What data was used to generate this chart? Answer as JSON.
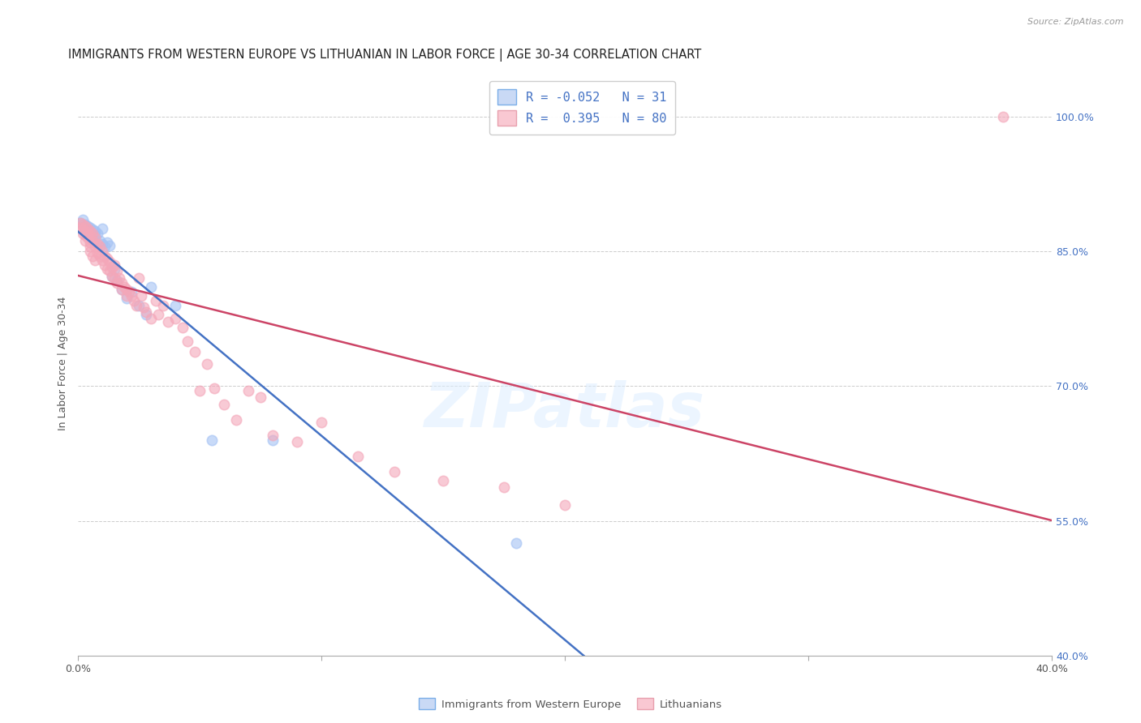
{
  "title": "IMMIGRANTS FROM WESTERN EUROPE VS LITHUANIAN IN LABOR FORCE | AGE 30-34 CORRELATION CHART",
  "source": "Source: ZipAtlas.com",
  "ylabel_label": "In Labor Force | Age 30-34",
  "legend_blue_label": "Immigrants from Western Europe",
  "legend_pink_label": "Lithuanians",
  "R_blue": -0.052,
  "N_blue": 31,
  "R_pink": 0.395,
  "N_pink": 80,
  "blue_color": "#a4c2f4",
  "pink_color": "#f4a7b9",
  "blue_line_color": "#4472c4",
  "pink_line_color": "#cc4466",
  "blue_scatter": [
    [
      0.001,
      0.882
    ],
    [
      0.002,
      0.885
    ],
    [
      0.003,
      0.88
    ],
    [
      0.003,
      0.875
    ],
    [
      0.004,
      0.878
    ],
    [
      0.004,
      0.872
    ],
    [
      0.005,
      0.876
    ],
    [
      0.005,
      0.87
    ],
    [
      0.006,
      0.874
    ],
    [
      0.007,
      0.873
    ],
    [
      0.007,
      0.868
    ],
    [
      0.008,
      0.87
    ],
    [
      0.009,
      0.862
    ],
    [
      0.01,
      0.875
    ],
    [
      0.01,
      0.858
    ],
    [
      0.011,
      0.855
    ],
    [
      0.012,
      0.86
    ],
    [
      0.013,
      0.856
    ],
    [
      0.014,
      0.822
    ],
    [
      0.015,
      0.83
    ],
    [
      0.016,
      0.818
    ],
    [
      0.018,
      0.808
    ],
    [
      0.02,
      0.798
    ],
    [
      0.022,
      0.805
    ],
    [
      0.025,
      0.79
    ],
    [
      0.028,
      0.78
    ],
    [
      0.03,
      0.81
    ],
    [
      0.04,
      0.79
    ],
    [
      0.055,
      0.64
    ],
    [
      0.08,
      0.64
    ],
    [
      0.18,
      0.525
    ]
  ],
  "pink_scatter": [
    [
      0.001,
      0.882
    ],
    [
      0.001,
      0.876
    ],
    [
      0.002,
      0.88
    ],
    [
      0.002,
      0.874
    ],
    [
      0.002,
      0.87
    ],
    [
      0.003,
      0.878
    ],
    [
      0.003,
      0.872
    ],
    [
      0.003,
      0.868
    ],
    [
      0.003,
      0.862
    ],
    [
      0.004,
      0.875
    ],
    [
      0.004,
      0.87
    ],
    [
      0.004,
      0.865
    ],
    [
      0.005,
      0.873
    ],
    [
      0.005,
      0.868
    ],
    [
      0.005,
      0.86
    ],
    [
      0.005,
      0.855
    ],
    [
      0.005,
      0.85
    ],
    [
      0.006,
      0.87
    ],
    [
      0.006,
      0.862
    ],
    [
      0.006,
      0.845
    ],
    [
      0.007,
      0.865
    ],
    [
      0.007,
      0.855
    ],
    [
      0.007,
      0.84
    ],
    [
      0.008,
      0.858
    ],
    [
      0.008,
      0.848
    ],
    [
      0.009,
      0.855
    ],
    [
      0.009,
      0.845
    ],
    [
      0.01,
      0.85
    ],
    [
      0.01,
      0.84
    ],
    [
      0.011,
      0.845
    ],
    [
      0.011,
      0.835
    ],
    [
      0.012,
      0.842
    ],
    [
      0.012,
      0.83
    ],
    [
      0.013,
      0.838
    ],
    [
      0.013,
      0.828
    ],
    [
      0.014,
      0.832
    ],
    [
      0.014,
      0.822
    ],
    [
      0.015,
      0.835
    ],
    [
      0.015,
      0.82
    ],
    [
      0.016,
      0.828
    ],
    [
      0.016,
      0.815
    ],
    [
      0.017,
      0.82
    ],
    [
      0.018,
      0.815
    ],
    [
      0.018,
      0.808
    ],
    [
      0.019,
      0.81
    ],
    [
      0.02,
      0.808
    ],
    [
      0.02,
      0.8
    ],
    [
      0.021,
      0.805
    ],
    [
      0.022,
      0.8
    ],
    [
      0.023,
      0.795
    ],
    [
      0.024,
      0.79
    ],
    [
      0.025,
      0.82
    ],
    [
      0.026,
      0.8
    ],
    [
      0.027,
      0.788
    ],
    [
      0.028,
      0.782
    ],
    [
      0.03,
      0.775
    ],
    [
      0.032,
      0.795
    ],
    [
      0.033,
      0.78
    ],
    [
      0.035,
      0.79
    ],
    [
      0.037,
      0.772
    ],
    [
      0.04,
      0.775
    ],
    [
      0.043,
      0.765
    ],
    [
      0.045,
      0.75
    ],
    [
      0.048,
      0.738
    ],
    [
      0.05,
      0.695
    ],
    [
      0.053,
      0.725
    ],
    [
      0.056,
      0.698
    ],
    [
      0.06,
      0.68
    ],
    [
      0.065,
      0.662
    ],
    [
      0.07,
      0.695
    ],
    [
      0.075,
      0.688
    ],
    [
      0.08,
      0.645
    ],
    [
      0.09,
      0.638
    ],
    [
      0.1,
      0.66
    ],
    [
      0.115,
      0.622
    ],
    [
      0.13,
      0.605
    ],
    [
      0.15,
      0.595
    ],
    [
      0.175,
      0.588
    ],
    [
      0.2,
      0.568
    ],
    [
      0.38,
      1.0
    ]
  ],
  "xlim": [
    0.0,
    0.4
  ],
  "ylim": [
    0.4,
    1.05
  ],
  "yticks": [
    0.4,
    0.55,
    0.7,
    0.85,
    1.0
  ],
  "ytick_labels": [
    "40.0%",
    "55.0%",
    "70.0%",
    "85.0%",
    "100.0%"
  ],
  "xtick_labels_show": [
    "0.0%",
    "",
    "",
    "",
    "40.0%"
  ],
  "xticks": [
    0.0,
    0.1,
    0.2,
    0.3,
    0.4
  ],
  "background_color": "#ffffff",
  "grid_color": "#cccccc",
  "scatter_size": 80,
  "title_fontsize": 10.5,
  "tick_fontsize": 9,
  "ylabel_fontsize": 9
}
